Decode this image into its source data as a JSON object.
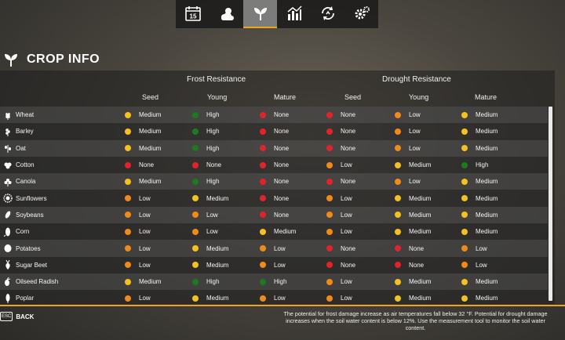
{
  "nav": {
    "tabs": [
      {
        "name": "calendar",
        "label": "15"
      },
      {
        "name": "weather"
      },
      {
        "name": "crop-info",
        "active": true
      },
      {
        "name": "statistics"
      },
      {
        "name": "cycle"
      },
      {
        "name": "settings"
      }
    ]
  },
  "page": {
    "title": "CROP INFO"
  },
  "groups": {
    "frost": "Frost Resistance",
    "drought": "Drought Resistance"
  },
  "columns": [
    "Seed",
    "Young",
    "Mature",
    "Seed",
    "Young",
    "Mature"
  ],
  "colors": {
    "green": "#1e7a1e",
    "yellow": "#f5c021",
    "orange": "#f08a18",
    "red": "#e0242a"
  },
  "crops": [
    {
      "name": "Wheat",
      "icon": "wheat-icon",
      "cells": [
        [
          "yellow",
          "Medium"
        ],
        [
          "green",
          "High"
        ],
        [
          "red",
          "None"
        ],
        [
          "red",
          "None"
        ],
        [
          "orange",
          "Low"
        ],
        [
          "yellow",
          "Medium"
        ]
      ]
    },
    {
      "name": "Barley",
      "icon": "barley-icon",
      "cells": [
        [
          "yellow",
          "Medium"
        ],
        [
          "green",
          "High"
        ],
        [
          "red",
          "None"
        ],
        [
          "red",
          "None"
        ],
        [
          "orange",
          "Low"
        ],
        [
          "yellow",
          "Medium"
        ]
      ]
    },
    {
      "name": "Oat",
      "icon": "oat-icon",
      "cells": [
        [
          "yellow",
          "Medium"
        ],
        [
          "green",
          "High"
        ],
        [
          "red",
          "None"
        ],
        [
          "red",
          "None"
        ],
        [
          "orange",
          "Low"
        ],
        [
          "yellow",
          "Medium"
        ]
      ]
    },
    {
      "name": "Cotton",
      "icon": "cotton-icon",
      "cells": [
        [
          "red",
          "None"
        ],
        [
          "red",
          "None"
        ],
        [
          "red",
          "None"
        ],
        [
          "orange",
          "Low"
        ],
        [
          "yellow",
          "Medium"
        ],
        [
          "green",
          "High"
        ]
      ]
    },
    {
      "name": "Canola",
      "icon": "canola-icon",
      "cells": [
        [
          "yellow",
          "Medium"
        ],
        [
          "green",
          "High"
        ],
        [
          "red",
          "None"
        ],
        [
          "red",
          "None"
        ],
        [
          "orange",
          "Low"
        ],
        [
          "yellow",
          "Medium"
        ]
      ]
    },
    {
      "name": "Sunflowers",
      "icon": "sunflower-icon",
      "cells": [
        [
          "orange",
          "Low"
        ],
        [
          "yellow",
          "Medium"
        ],
        [
          "red",
          "None"
        ],
        [
          "orange",
          "Low"
        ],
        [
          "yellow",
          "Medium"
        ],
        [
          "yellow",
          "Medium"
        ]
      ]
    },
    {
      "name": "Soybeans",
      "icon": "soybean-icon",
      "cells": [
        [
          "orange",
          "Low"
        ],
        [
          "orange",
          "Low"
        ],
        [
          "red",
          "None"
        ],
        [
          "orange",
          "Low"
        ],
        [
          "yellow",
          "Medium"
        ],
        [
          "yellow",
          "Medium"
        ]
      ]
    },
    {
      "name": "Corn",
      "icon": "corn-icon",
      "cells": [
        [
          "orange",
          "Low"
        ],
        [
          "orange",
          "Low"
        ],
        [
          "yellow",
          "Medium"
        ],
        [
          "orange",
          "Low"
        ],
        [
          "yellow",
          "Medium"
        ],
        [
          "yellow",
          "Medium"
        ]
      ]
    },
    {
      "name": "Potatoes",
      "icon": "potato-icon",
      "cells": [
        [
          "orange",
          "Low"
        ],
        [
          "yellow",
          "Medium"
        ],
        [
          "orange",
          "Low"
        ],
        [
          "red",
          "None"
        ],
        [
          "red",
          "None"
        ],
        [
          "orange",
          "Low"
        ]
      ]
    },
    {
      "name": "Sugar Beet",
      "icon": "sugar-beet-icon",
      "cells": [
        [
          "orange",
          "Low"
        ],
        [
          "yellow",
          "Medium"
        ],
        [
          "orange",
          "Low"
        ],
        [
          "red",
          "None"
        ],
        [
          "red",
          "None"
        ],
        [
          "orange",
          "Low"
        ]
      ]
    },
    {
      "name": "Oilseed Radish",
      "icon": "oilseed-radish-icon",
      "cells": [
        [
          "yellow",
          "Medium"
        ],
        [
          "green",
          "High"
        ],
        [
          "green",
          "High"
        ],
        [
          "orange",
          "Low"
        ],
        [
          "yellow",
          "Medium"
        ],
        [
          "yellow",
          "Medium"
        ]
      ]
    },
    {
      "name": "Poplar",
      "icon": "poplar-icon",
      "cells": [
        [
          "orange",
          "Low"
        ],
        [
          "yellow",
          "Medium"
        ],
        [
          "orange",
          "Low"
        ],
        [
          "orange",
          "Low"
        ],
        [
          "yellow",
          "Medium"
        ],
        [
          "yellow",
          "Medium"
        ]
      ]
    }
  ],
  "footer": {
    "esc_key": "ESC",
    "back_label": "BACK",
    "note": "The potential for frost damage increase as air temperatures fall below 32 °F. Potential for drought damage increases when the soil water content is below 12%. Use the measurement tool to monitor the soil water content."
  }
}
